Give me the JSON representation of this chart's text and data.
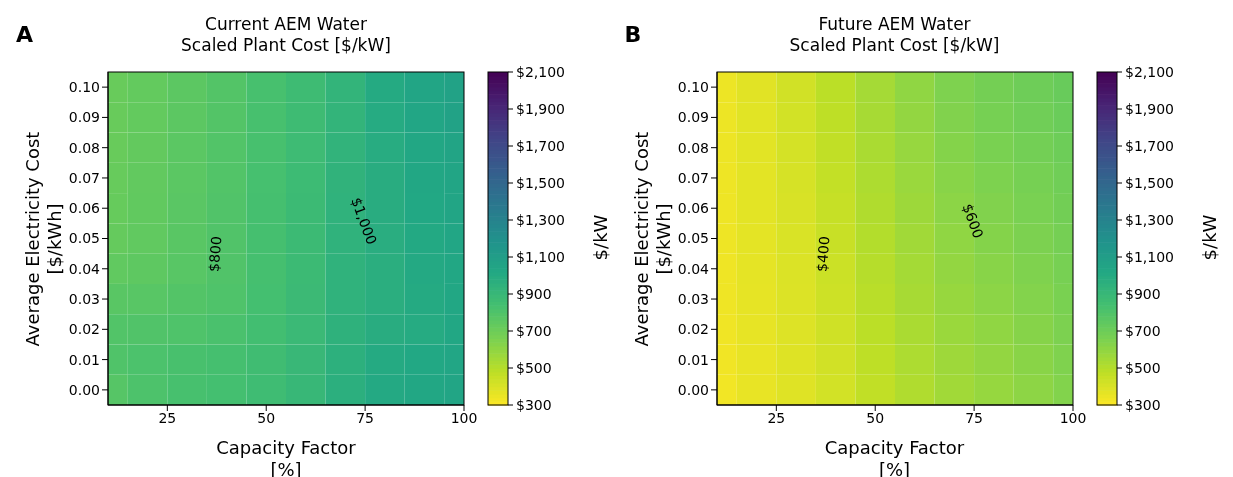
{
  "chart_data": [
    {
      "type": "heatmap",
      "title": "Current AEM Water\nScaled Plant Cost [$/kW]",
      "xlabel": "Capacity Factor\n[%]",
      "ylabel": "Average Electricity Cost\n[$/kWh]",
      "clabel": "$/kW",
      "annotations": [
        "A",
        "$800",
        "$1,000"
      ],
      "x": [
        10,
        20,
        30,
        40,
        50,
        60,
        70,
        80,
        90,
        100
      ],
      "xlim": [
        10,
        100
      ],
      "xticks": [
        25,
        50,
        75,
        100
      ],
      "y_categories": [
        "0.10",
        "0.09",
        "0.08",
        "0.07",
        "0.06",
        "0.05",
        "0.04",
        "0.03",
        "0.02",
        "0.01",
        "0.00"
      ],
      "cells": [
        [
          720,
          735,
          760,
          790,
          830,
          870,
          930,
          1005,
          1040,
          1070
        ],
        [
          720,
          735,
          760,
          790,
          830,
          870,
          930,
          1000,
          1035,
          1065
        ],
        [
          720,
          738,
          762,
          792,
          830,
          872,
          935,
          990,
          1030,
          1050
        ],
        [
          722,
          740,
          765,
          795,
          832,
          875,
          940,
          985,
          1025,
          1045
        ],
        [
          725,
          742,
          768,
          797,
          835,
          880,
          945,
          985,
          1020,
          1040
        ],
        [
          730,
          745,
          770,
          797,
          835,
          880,
          945,
          980,
          1015,
          1035
        ],
        [
          745,
          755,
          775,
          797,
          835,
          880,
          945,
          975,
          1010,
          1030
        ],
        [
          770,
          775,
          790,
          805,
          840,
          885,
          945,
          975,
          1005,
          1030
        ],
        [
          795,
          798,
          805,
          820,
          850,
          890,
          950,
          985,
          1000,
          1030
        ],
        [
          800,
          815,
          825,
          835,
          860,
          900,
          960,
          1005,
          1020,
          1035
        ],
        [
          780,
          810,
          830,
          840,
          865,
          905,
          965,
          1010,
          1030,
          1040
        ]
      ],
      "clim": [
        300,
        2100
      ],
      "cticks": [
        {
          "value": 300,
          "label": "$300"
        },
        {
          "value": 500,
          "label": "$500"
        },
        {
          "value": 700,
          "label": "$700"
        },
        {
          "value": 900,
          "label": "$900"
        },
        {
          "value": 1100,
          "label": "$1,100"
        },
        {
          "value": 1300,
          "label": "$1,300"
        },
        {
          "value": 1500,
          "label": "$1,500"
        },
        {
          "value": 1700,
          "label": "$1,700"
        },
        {
          "value": 1900,
          "label": "$1,900"
        },
        {
          "value": 2100,
          "label": "$2,100"
        }
      ]
    },
    {
      "type": "heatmap",
      "title": "Future AEM Water\nScaled Plant Cost [$/kW]",
      "xlabel": "Capacity Factor\n[%]",
      "ylabel": "Average Electricity Cost\n[$/kWh]",
      "clabel": "$/kW",
      "annotations": [
        "B",
        "$400",
        "$600"
      ],
      "x": [
        10,
        20,
        30,
        40,
        50,
        60,
        70,
        80,
        90,
        100
      ],
      "xlim": [
        10,
        100
      ],
      "xticks": [
        25,
        50,
        75,
        100
      ],
      "y_categories": [
        "0.10",
        "0.09",
        "0.08",
        "0.07",
        "0.06",
        "0.05",
        "0.04",
        "0.03",
        "0.02",
        "0.01",
        "0.00"
      ],
      "cells": [
        [
          345,
          380,
          425,
          485,
          545,
          600,
          650,
          680,
          700,
          720
        ],
        [
          345,
          378,
          420,
          478,
          538,
          592,
          642,
          672,
          692,
          712
        ],
        [
          345,
          376,
          415,
          470,
          530,
          583,
          632,
          662,
          684,
          702
        ],
        [
          343,
          374,
          410,
          462,
          522,
          575,
          622,
          652,
          674,
          694
        ],
        [
          342,
          372,
          405,
          455,
          515,
          565,
          612,
          642,
          664,
          686
        ],
        [
          341,
          370,
          400,
          448,
          507,
          556,
          602,
          632,
          655,
          678
        ],
        [
          340,
          368,
          397,
          442,
          500,
          548,
          592,
          622,
          646,
          670
        ],
        [
          338,
          366,
          394,
          436,
          492,
          540,
          582,
          612,
          637,
          662
        ],
        [
          336,
          363,
          391,
          430,
          485,
          532,
          573,
          602,
          628,
          654
        ],
        [
          334,
          360,
          388,
          425,
          478,
          524,
          564,
          593,
          619,
          646
        ],
        [
          332,
          358,
          385,
          420,
          470,
          516,
          556,
          585,
          610,
          638
        ]
      ],
      "clim": [
        300,
        2100
      ],
      "cticks": [
        {
          "value": 300,
          "label": "$300"
        },
        {
          "value": 500,
          "label": "$500"
        },
        {
          "value": 700,
          "label": "$700"
        },
        {
          "value": 900,
          "label": "$900"
        },
        {
          "value": 1100,
          "label": "$1,100"
        },
        {
          "value": 1300,
          "label": "$1,300"
        },
        {
          "value": 1500,
          "label": "$1,500"
        },
        {
          "value": 1700,
          "label": "$1,700"
        },
        {
          "value": 1900,
          "label": "$1,900"
        },
        {
          "value": 2100,
          "label": "$2,100"
        }
      ]
    }
  ]
}
